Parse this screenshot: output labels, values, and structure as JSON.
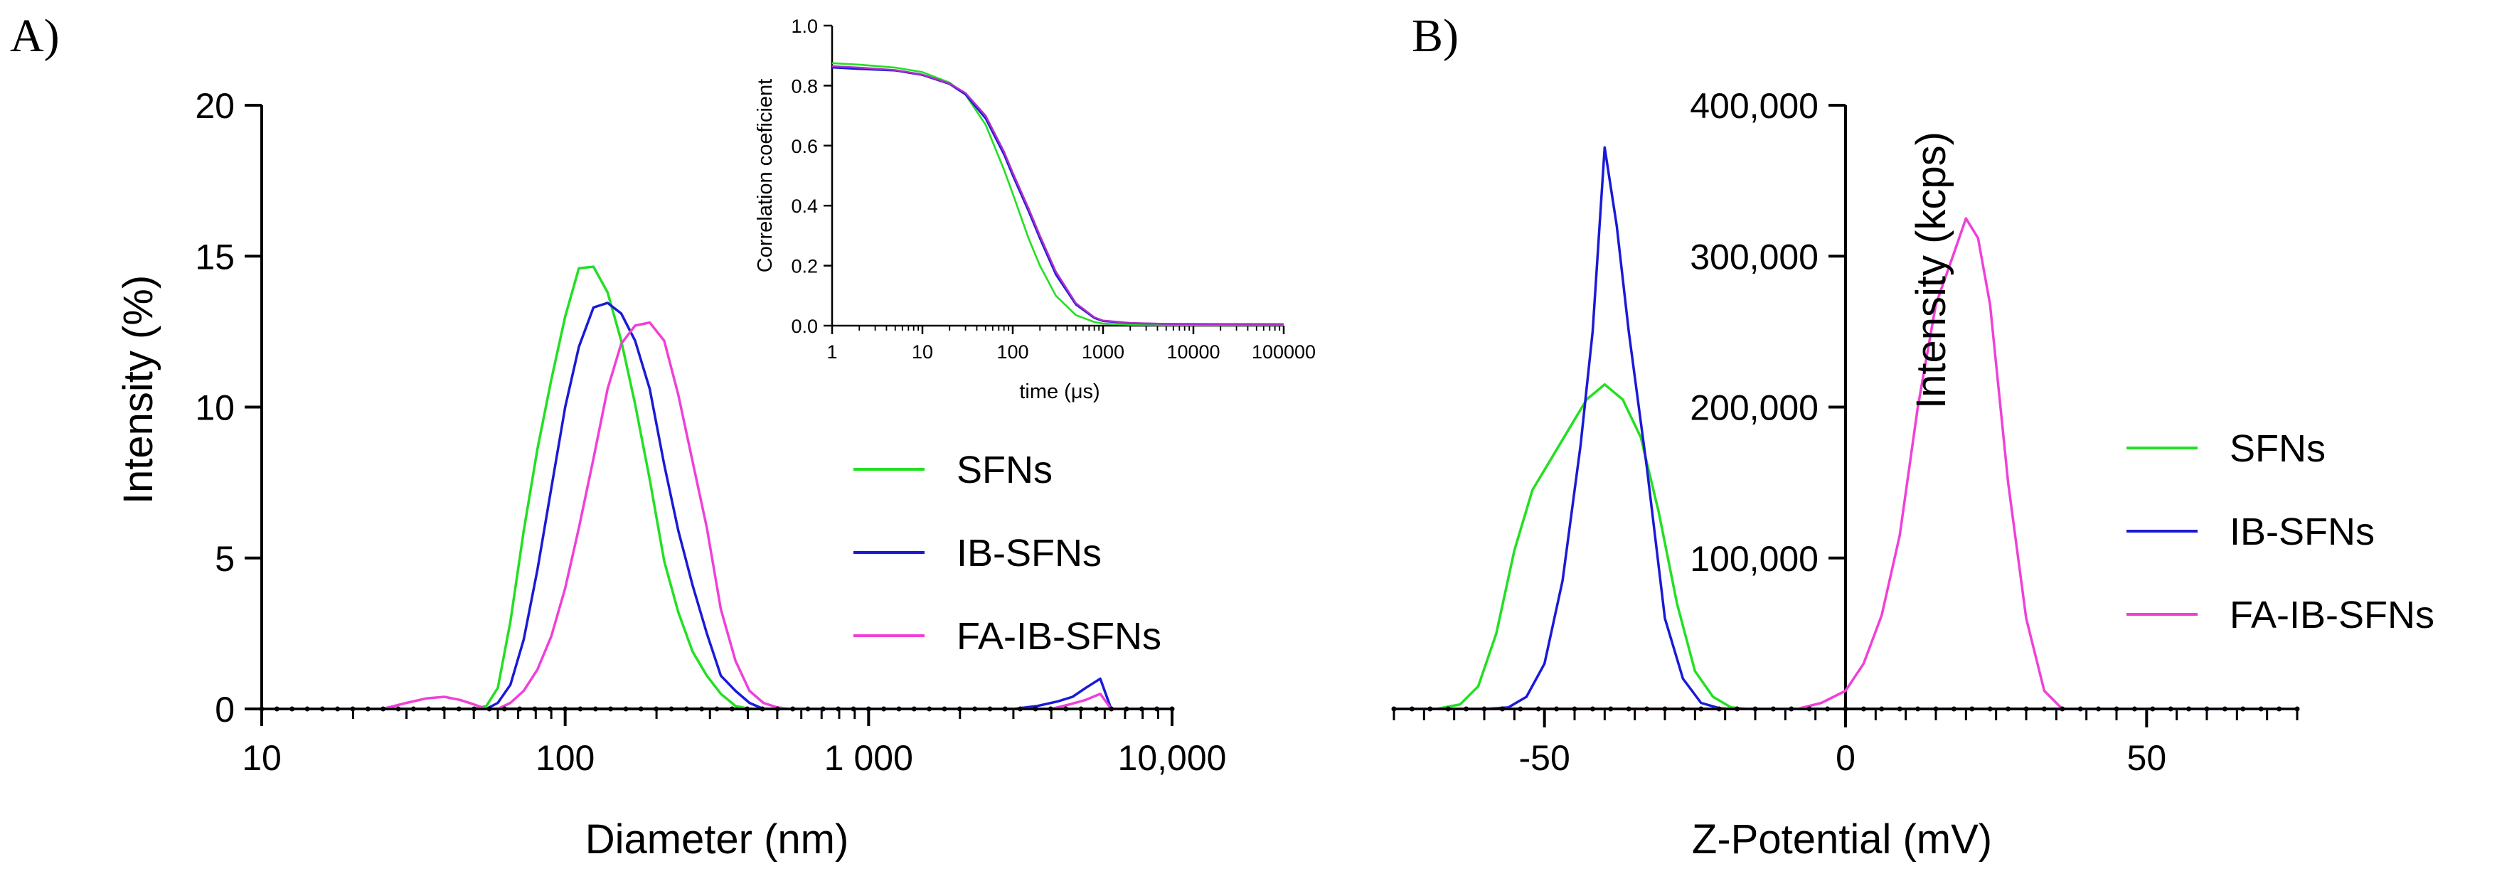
{
  "chart_data": [
    {
      "id": "A",
      "type": "line",
      "panel_label": "A)",
      "xlabel": "Diameter (nm)",
      "ylabel": "Intensity (%)",
      "xscale": "log",
      "xlim": [
        10,
        10000
      ],
      "ylim": [
        0,
        20
      ],
      "xticks": [
        10,
        100,
        1000,
        10000
      ],
      "xtick_labels": [
        "10",
        "100",
        "1 000",
        "10,000"
      ],
      "yticks": [
        0,
        5,
        10,
        15,
        20
      ],
      "ytick_labels": [
        "0",
        "5",
        "10",
        "15",
        "20"
      ],
      "legend_position": "middle-right",
      "series": [
        {
          "name": "SFNs",
          "color": "#22e022",
          "x": [
            10,
            20,
            40,
            50,
            55,
            60,
            66,
            73,
            81,
            90,
            100,
            111,
            124,
            138,
            153,
            170,
            190,
            212,
            236,
            263,
            293,
            326,
            364,
            405,
            450,
            550,
            1000,
            4000,
            10000
          ],
          "y": [
            0,
            0,
            0,
            0,
            0.1,
            0.7,
            2.9,
            5.9,
            8.6,
            10.9,
            13.0,
            14.6,
            14.65,
            13.8,
            12.2,
            10.1,
            7.6,
            4.9,
            3.2,
            1.9,
            1.1,
            0.5,
            0.1,
            0,
            0,
            0,
            0,
            0,
            0
          ]
        },
        {
          "name": "IB-SFNs",
          "color": "#1a1ad6",
          "x": [
            10,
            40,
            50,
            55,
            60,
            66,
            73,
            81,
            90,
            100,
            111,
            124,
            138,
            153,
            170,
            190,
            212,
            236,
            263,
            293,
            326,
            364,
            405,
            450,
            500,
            550,
            1000,
            3000,
            3600,
            4200,
            4700,
            5200,
            5800,
            6300,
            10000
          ],
          "y": [
            0,
            0,
            0,
            0,
            0.2,
            0.8,
            2.3,
            4.6,
            7.3,
            10.0,
            12.0,
            13.3,
            13.45,
            13.1,
            12.2,
            10.6,
            8.1,
            5.9,
            4.1,
            2.5,
            1.1,
            0.6,
            0.2,
            0,
            0,
            0,
            0,
            0,
            0.1,
            0.25,
            0.4,
            0.7,
            1.0,
            0,
            0
          ]
        },
        {
          "name": "FA-IB-SFNs",
          "color": "#f040d8",
          "x": [
            10,
            25,
            30,
            35,
            40,
            45,
            50,
            55,
            60,
            66,
            73,
            81,
            90,
            100,
            111,
            124,
            138,
            153,
            170,
            190,
            212,
            236,
            263,
            293,
            326,
            364,
            405,
            450,
            500,
            550,
            650,
            1000,
            4000,
            4600,
            5200,
            5800,
            6300,
            10000
          ],
          "y": [
            0,
            0,
            0.2,
            0.35,
            0.4,
            0.3,
            0.15,
            0,
            0,
            0.2,
            0.6,
            1.3,
            2.4,
            4.0,
            6.0,
            8.3,
            10.6,
            12.1,
            12.7,
            12.8,
            12.2,
            10.4,
            8.2,
            6.0,
            3.3,
            1.6,
            0.6,
            0.2,
            0.05,
            0,
            0,
            0,
            0,
            0.15,
            0.3,
            0.5,
            0,
            0
          ]
        },
        {
          "name": "baseline",
          "color": "#000000",
          "markers_every": 0.05,
          "x": [
            10,
            10000
          ],
          "y": [
            0,
            0
          ]
        }
      ]
    },
    {
      "id": "A-inset",
      "type": "line",
      "xlabel": "time (μs)",
      "ylabel": "Correlation coeficient",
      "xscale": "log",
      "xlim": [
        1,
        100000
      ],
      "ylim": [
        0,
        1.0
      ],
      "xticks": [
        1,
        10,
        100,
        1000,
        10000,
        100000
      ],
      "xtick_labels": [
        "1",
        "10",
        "100",
        "1000",
        "10000",
        "100000"
      ],
      "yticks": [
        0,
        0.2,
        0.4,
        0.6,
        0.8,
        1.0
      ],
      "ytick_labels": [
        "0.0",
        "0.2",
        "0.4",
        "0.6",
        "0.8",
        "1.0"
      ],
      "series": [
        {
          "name": "SFNs",
          "color": "#22e022",
          "x": [
            1,
            2,
            5,
            10,
            20,
            30,
            50,
            80,
            100,
            150,
            200,
            300,
            500,
            800,
            1000,
            2000,
            5000,
            100000
          ],
          "y": [
            0.875,
            0.87,
            0.86,
            0.845,
            0.81,
            0.77,
            0.67,
            0.52,
            0.44,
            0.29,
            0.2,
            0.1,
            0.035,
            0.012,
            0.007,
            0.003,
            0.002,
            0.002
          ]
        },
        {
          "name": "IB-SFNs",
          "color": "#1a1ad6",
          "x": [
            1,
            2,
            5,
            10,
            20,
            30,
            50,
            80,
            100,
            150,
            200,
            300,
            500,
            800,
            1000,
            2000,
            5000,
            100000
          ],
          "y": [
            0.86,
            0.855,
            0.85,
            0.835,
            0.805,
            0.77,
            0.69,
            0.57,
            0.5,
            0.38,
            0.29,
            0.17,
            0.07,
            0.025,
            0.015,
            0.008,
            0.006,
            0.005
          ]
        },
        {
          "name": "FA-IB-SFNs",
          "color": "#b030c8",
          "x": [
            1,
            2,
            5,
            10,
            20,
            30,
            50,
            80,
            100,
            150,
            200,
            300,
            500,
            800,
            1000,
            2000,
            5000,
            100000
          ],
          "y": [
            0.865,
            0.86,
            0.852,
            0.837,
            0.807,
            0.775,
            0.7,
            0.58,
            0.51,
            0.39,
            0.3,
            0.18,
            0.075,
            0.028,
            0.017,
            0.009,
            0.006,
            0.004
          ]
        }
      ]
    },
    {
      "id": "B",
      "type": "line",
      "panel_label": "B)",
      "xlabel": "Z-Potential (mV)",
      "ylabel": "Intensity (kcps)",
      "xlim": [
        -75,
        75
      ],
      "ylim": [
        0,
        400000
      ],
      "xticks": [
        -50,
        0,
        50
      ],
      "xtick_labels": [
        "-50",
        "0",
        "50"
      ],
      "yticks": [
        100000,
        200000,
        300000,
        400000
      ],
      "ytick_labels": [
        "100,000",
        "200,000",
        "300,000",
        "400,000"
      ],
      "legend_position": "middle-right",
      "series": [
        {
          "name": "SFNs",
          "color": "#22e022",
          "x": [
            -75,
            -68,
            -64,
            -61,
            -58,
            -55,
            -52,
            -49,
            -46,
            -43,
            -40,
            -37,
            -34,
            -31,
            -28,
            -25,
            -22,
            -19,
            -16,
            75
          ],
          "y": [
            0,
            0,
            3000,
            15000,
            50000,
            105000,
            145000,
            165000,
            185000,
            205000,
            215000,
            205000,
            180000,
            130000,
            70000,
            25000,
            8000,
            1000,
            0,
            0
          ]
        },
        {
          "name": "IB-SFNs",
          "color": "#1a1ad6",
          "x": [
            -75,
            -60,
            -56,
            -53,
            -50,
            -47,
            -44,
            -42,
            -40,
            -38,
            -36,
            -33,
            -30,
            -27,
            -24,
            -21,
            -19,
            75
          ],
          "y": [
            0,
            0,
            1000,
            8000,
            30000,
            85000,
            175000,
            250000,
            372000,
            320000,
            250000,
            160000,
            60000,
            20000,
            4000,
            500,
            0,
            0
          ]
        },
        {
          "name": "FA-IB-SFNs",
          "color": "#f040d8",
          "x": [
            -75,
            -8,
            -4,
            0,
            3,
            6,
            9,
            12,
            15,
            18,
            20,
            22,
            24,
            27,
            30,
            33,
            36,
            75
          ],
          "y": [
            0,
            0,
            4000,
            12000,
            30000,
            62000,
            115000,
            200000,
            268000,
            302000,
            325000,
            312000,
            268000,
            150000,
            60000,
            12000,
            0,
            0
          ]
        },
        {
          "name": "baseline",
          "color": "#000000",
          "markers_every": 3,
          "x": [
            -75,
            75
          ],
          "y": [
            0,
            0
          ]
        }
      ]
    }
  ]
}
